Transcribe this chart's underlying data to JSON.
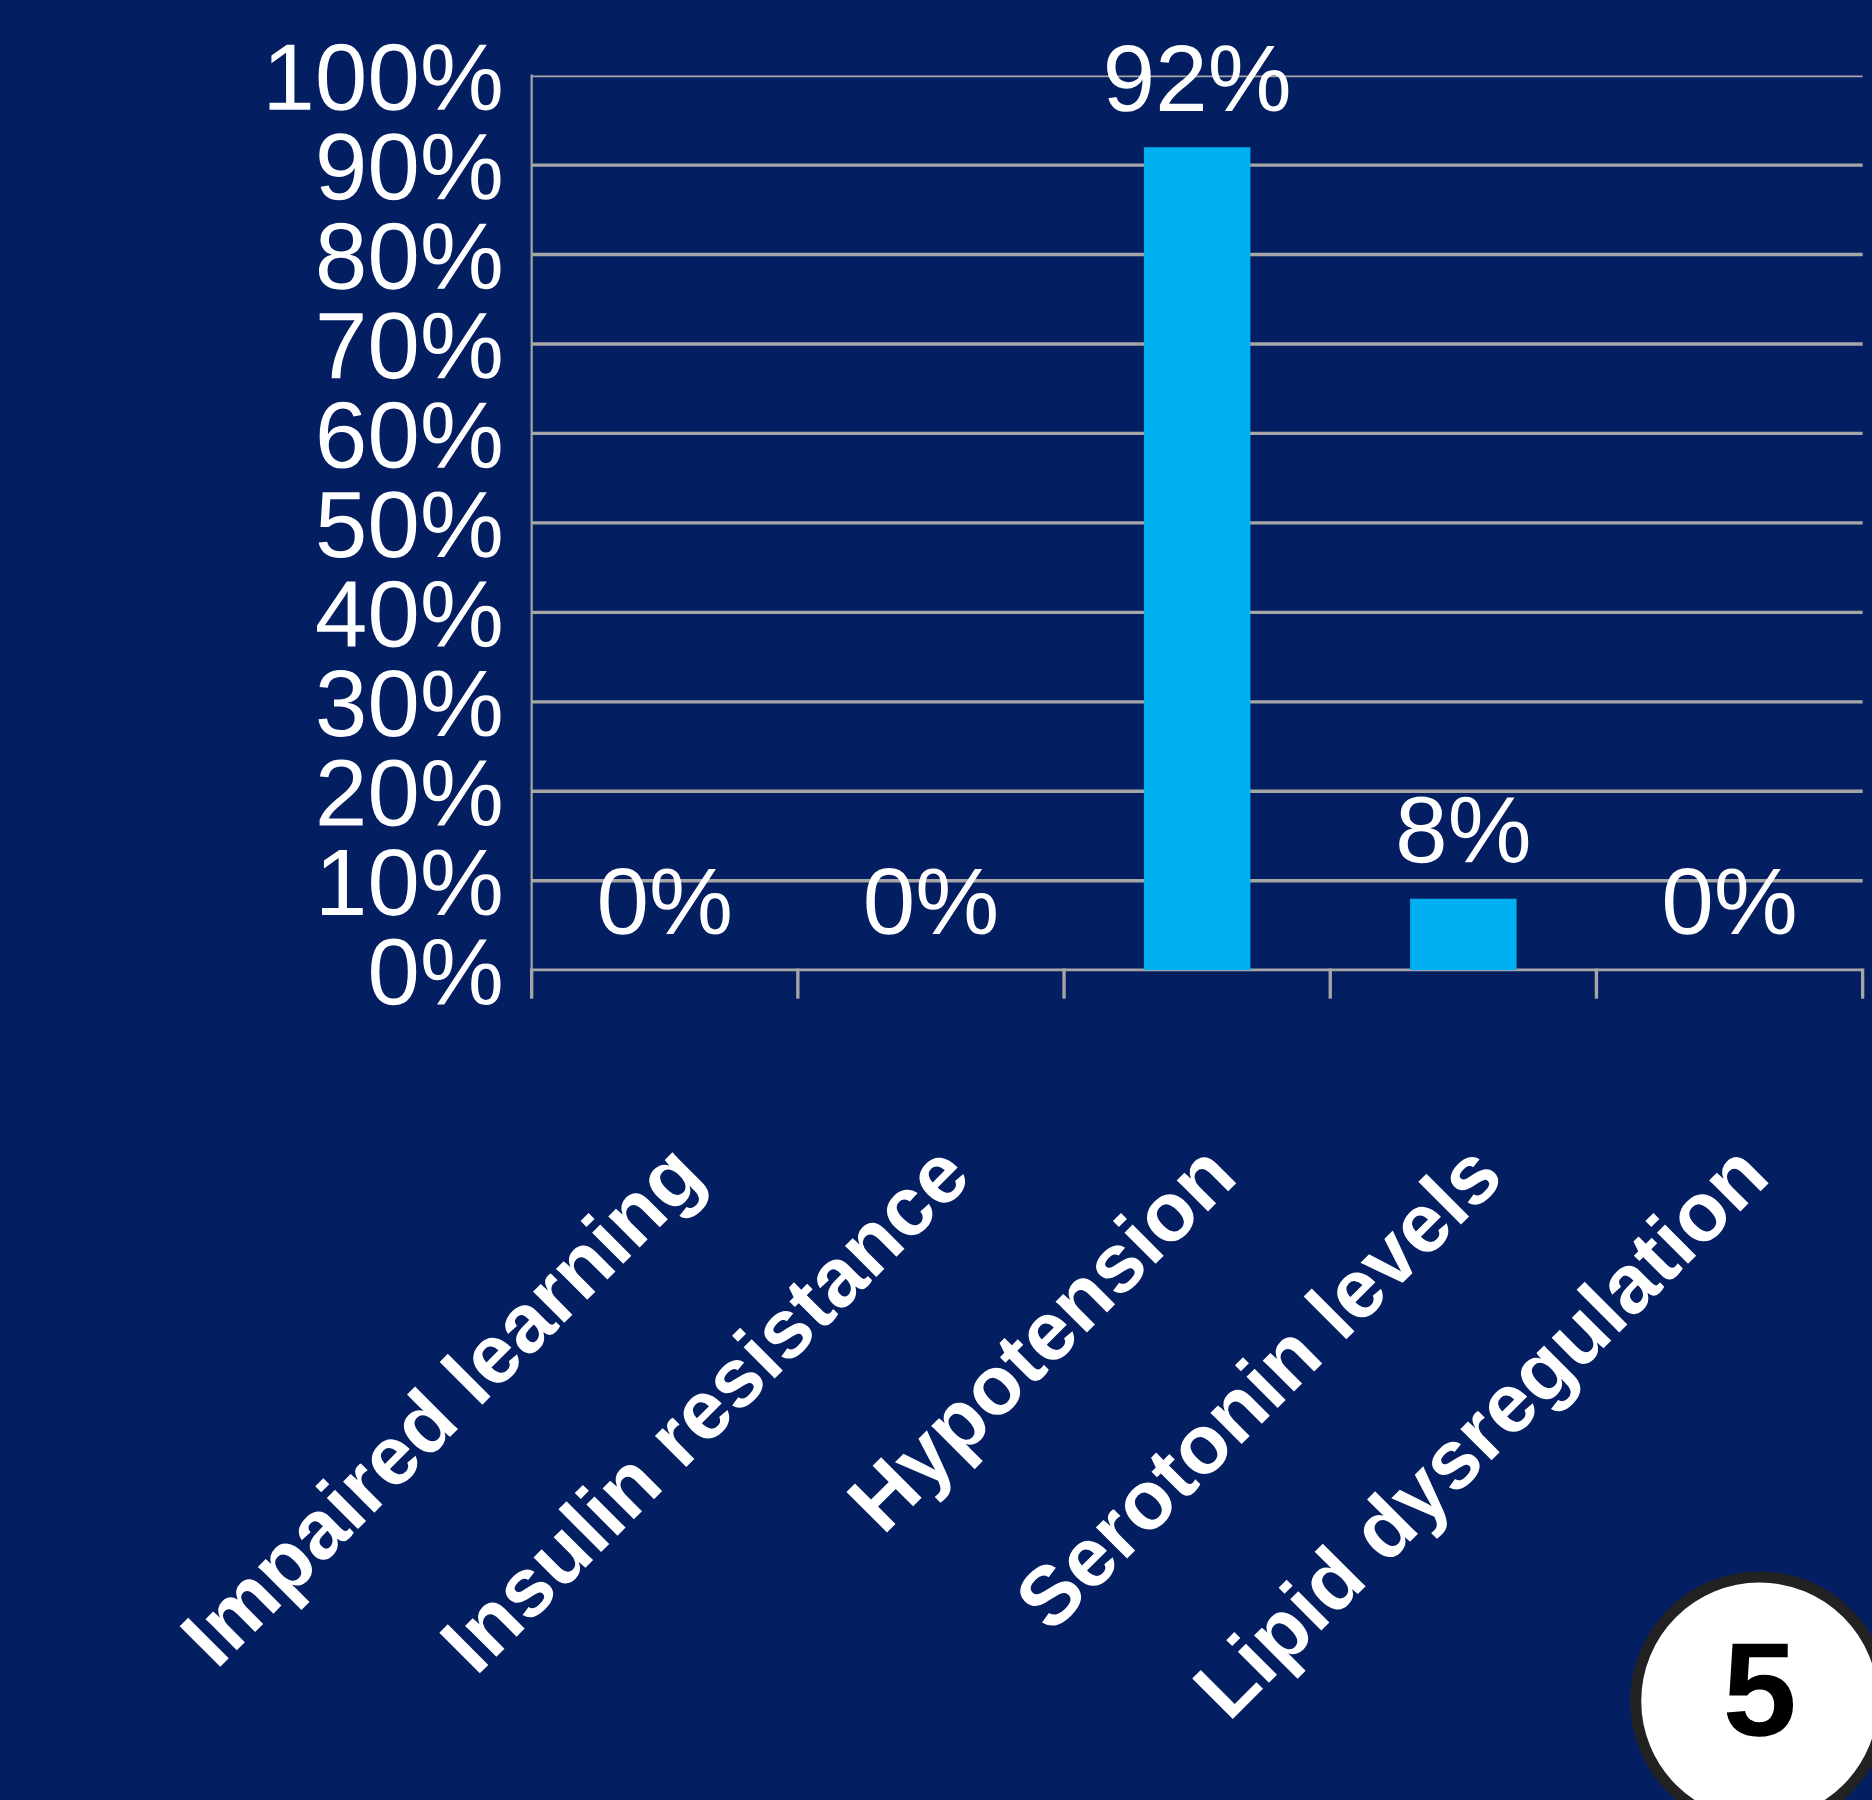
{
  "chart_data": {
    "type": "bar",
    "categories": [
      "Impaired learning",
      "Insulin resistance",
      "Hypotension",
      "Serotonin levels",
      "Lipid dysregulation"
    ],
    "values": [
      0,
      0,
      92,
      8,
      0
    ],
    "color": "#00b0f0",
    "value_labels": [
      "0%",
      "0%",
      "92%",
      "8%",
      "0%"
    ],
    "ylim": [
      0,
      100
    ],
    "yticks": [
      {
        "value": 0,
        "label": "0%"
      },
      {
        "value": 10,
        "label": "10%"
      },
      {
        "value": 20,
        "label": "20%"
      },
      {
        "value": 30,
        "label": "30%"
      },
      {
        "value": 40,
        "label": "40%"
      },
      {
        "value": 50,
        "label": "50%"
      },
      {
        "value": 60,
        "label": "60%"
      },
      {
        "value": 70,
        "label": "70%"
      },
      {
        "value": 80,
        "label": "80%"
      },
      {
        "value": 90,
        "label": "90%"
      },
      {
        "value": 100,
        "label": "100%"
      }
    ],
    "grid": "y",
    "legend": false,
    "annotations": [
      "5"
    ]
  }
}
